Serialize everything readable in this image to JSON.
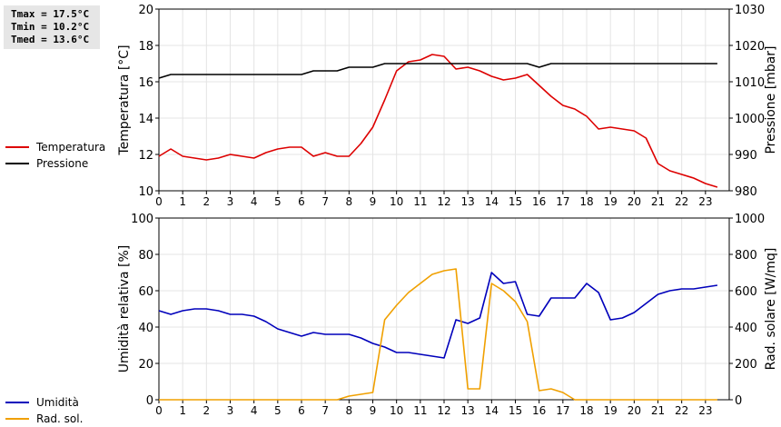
{
  "stats": {
    "tmax": "Tmax = 17.5°C",
    "tmin": "Tmin = 10.2°C",
    "tmed": "Tmed = 13.6°C"
  },
  "chart_data": [
    {
      "type": "line",
      "xlabel": "",
      "xlim": [
        0,
        24
      ],
      "xticks": [
        0,
        1,
        2,
        3,
        4,
        5,
        6,
        7,
        8,
        9,
        10,
        11,
        12,
        13,
        14,
        15,
        16,
        17,
        18,
        19,
        20,
        21,
        22,
        23
      ],
      "ylabel": "Temperatura [°C]",
      "ylim": [
        10,
        20
      ],
      "yticks": [
        10,
        12,
        14,
        16,
        18,
        20
      ],
      "y2label": "Pressione [mbar]",
      "y2lim": [
        980,
        1030
      ],
      "y2ticks": [
        980,
        990,
        1000,
        1010,
        1020,
        1030
      ],
      "legend_placement": "left",
      "series": [
        {
          "name": "Temperatura",
          "axis": "left",
          "color": "#dd0000",
          "x": [
            0,
            0.5,
            1,
            1.5,
            2,
            2.5,
            3,
            3.5,
            4,
            4.5,
            5,
            5.5,
            6,
            6.5,
            7,
            7.5,
            8,
            8.5,
            9,
            9.5,
            10,
            10.5,
            11,
            11.5,
            12,
            12.5,
            13,
            13.5,
            14,
            14.5,
            15,
            15.5,
            16,
            16.5,
            17,
            17.5,
            18,
            18.5,
            19,
            19.5,
            20,
            20.5,
            21,
            21.5,
            22,
            22.5,
            23,
            23.5
          ],
          "values": [
            11.9,
            12.3,
            11.9,
            11.8,
            11.7,
            11.8,
            12.0,
            11.9,
            11.8,
            12.1,
            12.3,
            12.4,
            12.4,
            11.9,
            12.1,
            11.9,
            11.9,
            12.6,
            13.5,
            15.0,
            16.6,
            17.1,
            17.2,
            17.5,
            17.4,
            16.7,
            16.8,
            16.6,
            16.3,
            16.1,
            16.2,
            16.4,
            15.8,
            15.2,
            14.7,
            14.5,
            14.1,
            13.4,
            13.5,
            13.4,
            13.3,
            12.9,
            11.5,
            11.1,
            10.9,
            10.7,
            10.4,
            10.2
          ]
        },
        {
          "name": "Pressione",
          "axis": "right",
          "color": "#000000",
          "x": [
            0,
            0.5,
            1,
            1.5,
            2,
            2.5,
            3,
            3.5,
            4,
            4.5,
            5,
            5.5,
            6,
            6.5,
            7,
            7.5,
            8,
            8.5,
            9,
            9.5,
            10,
            10.5,
            11,
            11.5,
            12,
            12.5,
            13,
            13.5,
            14,
            14.5,
            15,
            15.5,
            16,
            16.5,
            17,
            17.5,
            18,
            18.5,
            19,
            19.5,
            20,
            20.5,
            21,
            21.5,
            22,
            22.5,
            23,
            23.5
          ],
          "values": [
            1011,
            1012,
            1012,
            1012,
            1012,
            1012,
            1012,
            1012,
            1012,
            1012,
            1012,
            1012,
            1012,
            1013,
            1013,
            1013,
            1014,
            1014,
            1014,
            1015,
            1015,
            1015,
            1015,
            1015,
            1015,
            1015,
            1015,
            1015,
            1015,
            1015,
            1015,
            1015,
            1014,
            1015,
            1015,
            1015,
            1015,
            1015,
            1015,
            1015,
            1015,
            1015,
            1015,
            1015,
            1015,
            1015,
            1015,
            1015
          ]
        }
      ]
    },
    {
      "type": "line",
      "xlabel": "",
      "xlim": [
        0,
        24
      ],
      "xticks": [
        0,
        1,
        2,
        3,
        4,
        5,
        6,
        7,
        8,
        9,
        10,
        11,
        12,
        13,
        14,
        15,
        16,
        17,
        18,
        19,
        20,
        21,
        22,
        23
      ],
      "ylabel": "Umidità relativa [%]",
      "ylim": [
        0,
        100
      ],
      "yticks": [
        0,
        20,
        40,
        60,
        80,
        100
      ],
      "y2label": "Rad. solare [W/mq]",
      "y2lim": [
        0,
        1000
      ],
      "y2ticks": [
        0,
        200,
        400,
        600,
        800,
        1000
      ],
      "legend_placement": "left",
      "series": [
        {
          "name": "Umidità",
          "axis": "left",
          "color": "#0000bb",
          "x": [
            0,
            0.5,
            1,
            1.5,
            2,
            2.5,
            3,
            3.5,
            4,
            4.5,
            5,
            5.5,
            6,
            6.5,
            7,
            7.5,
            8,
            8.5,
            9,
            9.5,
            10,
            10.5,
            11,
            11.5,
            12,
            12.5,
            13,
            13.5,
            14,
            14.5,
            15,
            15.5,
            16,
            16.5,
            17,
            17.5,
            18,
            18.5,
            19,
            19.5,
            20,
            20.5,
            21,
            21.5,
            22,
            22.5,
            23,
            23.5
          ],
          "values": [
            49,
            47,
            49,
            50,
            50,
            49,
            47,
            47,
            46,
            43,
            39,
            37,
            35,
            37,
            36,
            36,
            36,
            34,
            31,
            29,
            26,
            26,
            25,
            24,
            23,
            44,
            42,
            45,
            70,
            64,
            65,
            47,
            46,
            56,
            56,
            56,
            64,
            59,
            44,
            45,
            48,
            53,
            58,
            60,
            61,
            61,
            62,
            63
          ]
        },
        {
          "name": "Rad. sol.",
          "axis": "right",
          "color": "#f0a000",
          "x": [
            0,
            0.5,
            1,
            1.5,
            2,
            2.5,
            3,
            3.5,
            4,
            4.5,
            5,
            5.5,
            6,
            6.5,
            7,
            7.5,
            8,
            8.5,
            9,
            9.5,
            10,
            10.5,
            11,
            11.5,
            12,
            12.5,
            13,
            13.5,
            14,
            14.5,
            15,
            15.5,
            16,
            16.5,
            17,
            17.5,
            18,
            18.5,
            19,
            19.5,
            20,
            20.5,
            21,
            21.5,
            22,
            22.5,
            23,
            23.5
          ],
          "values": [
            0,
            0,
            0,
            0,
            0,
            0,
            0,
            0,
            0,
            0,
            0,
            0,
            0,
            0,
            0,
            0,
            20,
            30,
            40,
            440,
            520,
            590,
            640,
            690,
            710,
            720,
            60,
            60,
            640,
            600,
            540,
            430,
            50,
            60,
            40,
            0,
            0,
            0,
            0,
            0,
            0,
            0,
            0,
            0,
            0,
            0,
            0,
            0
          ]
        }
      ]
    }
  ]
}
